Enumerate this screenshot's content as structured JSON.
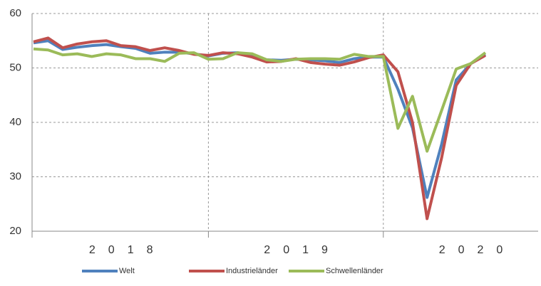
{
  "chart_data": {
    "type": "line",
    "categories": [
      null,
      null,
      null,
      null,
      null,
      null,
      null,
      null,
      null,
      null,
      null,
      null,
      null,
      null,
      null,
      null,
      null,
      null,
      null,
      null,
      null,
      null,
      null,
      null,
      null,
      null,
      null,
      null,
      null,
      null,
      null,
      null
    ],
    "year_labels": [
      "2018",
      "2019",
      "2020"
    ],
    "series": [
      {
        "name": "Welt",
        "color": "#4f81bd",
        "values": [
          54.6,
          55.0,
          53.4,
          53.8,
          54.1,
          54.3,
          53.9,
          53.6,
          52.7,
          52.9,
          52.9,
          52.6,
          52.2,
          52.7,
          52.8,
          52.3,
          51.5,
          51.4,
          51.6,
          51.5,
          51.3,
          51.0,
          51.7,
          52.0,
          52.0,
          46.1,
          39.0,
          26.2,
          36.0,
          47.8,
          50.8,
          52.5
        ]
      },
      {
        "name": "Industrieländer",
        "color": "#c0504d",
        "values": [
          54.8,
          55.5,
          53.7,
          54.4,
          54.8,
          55.0,
          54.1,
          53.9,
          53.2,
          53.7,
          53.2,
          52.5,
          52.3,
          52.8,
          52.6,
          52.0,
          51.1,
          51.2,
          51.7,
          51.0,
          50.7,
          50.5,
          51.1,
          51.9,
          52.4,
          49.3,
          40.0,
          22.3,
          33.5,
          46.8,
          50.8,
          52.3
        ]
      },
      {
        "name": "Schwellenländer",
        "color": "#9bbb59",
        "values": [
          53.5,
          53.3,
          52.4,
          52.6,
          52.1,
          52.6,
          52.4,
          51.7,
          51.7,
          51.2,
          52.7,
          52.8,
          51.6,
          51.7,
          52.8,
          52.6,
          51.5,
          51.2,
          51.6,
          51.7,
          51.7,
          51.6,
          52.5,
          52.1,
          52.1,
          38.9,
          44.8,
          34.7,
          42.2,
          49.8,
          50.8,
          52.8
        ]
      }
    ],
    "ylim": [
      20,
      60
    ],
    "yticks": [
      20,
      30,
      40,
      50,
      60
    ],
    "grid": true,
    "legend": "bottom"
  }
}
